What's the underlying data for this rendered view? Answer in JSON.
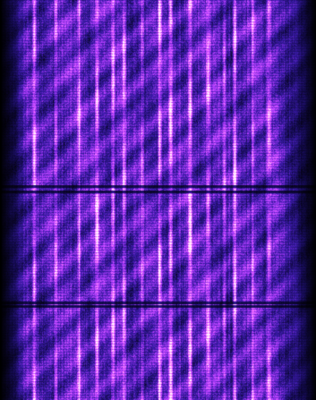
{
  "image": {
    "subject": "waterfall-spectrogram",
    "palette": {
      "background": "#000000",
      "deep": "#120a4a",
      "mid": "#3a1aa8",
      "bright": "#b23cff",
      "hot": "#ff7bff",
      "peak": "#fff2ff"
    }
  }
}
